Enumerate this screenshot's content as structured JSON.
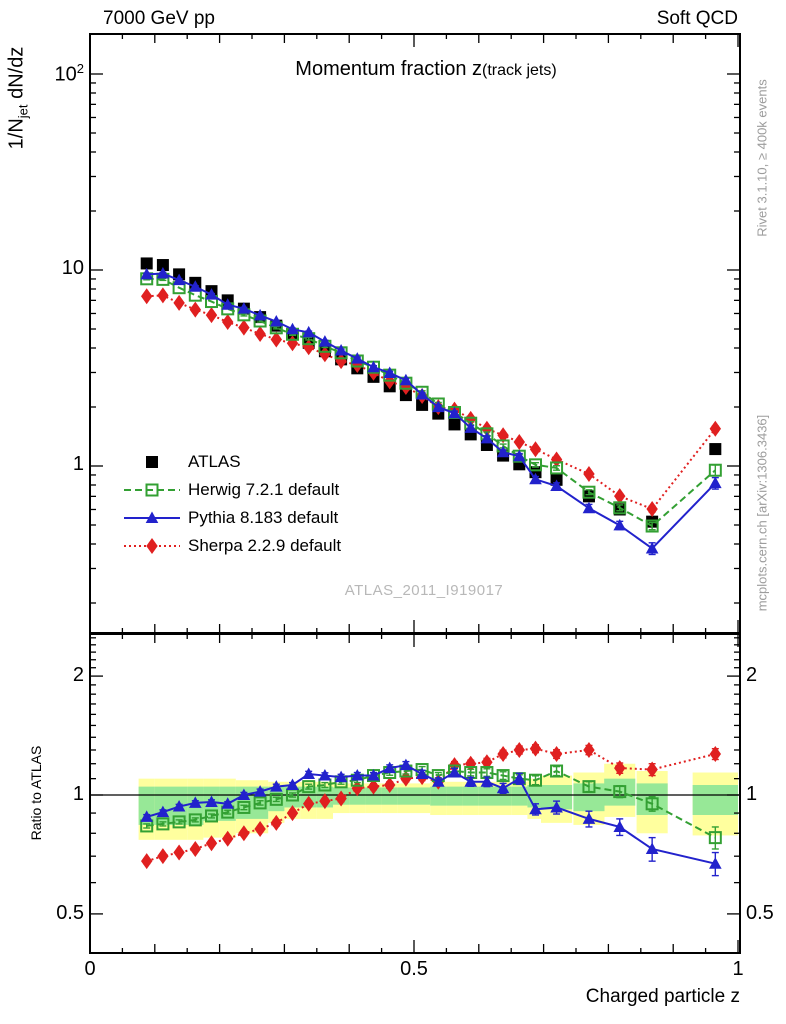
{
  "header": {
    "left": "7000 GeV pp",
    "right": "Soft QCD"
  },
  "title": {
    "main": "Momentum fraction z",
    "paren": "(track jets)"
  },
  "ylabel_main": {
    "pre": "1/N",
    "sub": "jet",
    "post": " dN/dz"
  },
  "ylabel_ratio": "Ratio to ATLAS",
  "xlabel": "Charged particle z",
  "watermark": "ATLAS_2011_I919017",
  "side_notes": {
    "top": "Rivet 3.1.10, ≥ 400k events",
    "bottom": "mcplots.cern.ch [arXiv:1306.3436]"
  },
  "colors": {
    "atlas": "#000000",
    "herwig": "#33A033",
    "pythia": "#2222CC",
    "sherpa": "#E02020",
    "band_yellow": "#FFFF9E",
    "band_green": "#97E897",
    "watermark": "#B8B8B8",
    "side_note": "#9C9C9C",
    "frame": "#000000"
  },
  "chart_data": {
    "type": "line",
    "title": "Momentum fraction z (track jets)",
    "xlabel": "Charged particle z",
    "ylabel": "1/N_jet dN/dz",
    "ratio_label": "Ratio to ATLAS",
    "legend_position": "middle-left",
    "x_axis": {
      "lim": [
        0,
        1.003
      ],
      "ticks": [
        {
          "text": "0",
          "v": 0
        },
        {
          "text": "0.5",
          "v": 0.5
        },
        {
          "text": "1",
          "v": 1
        }
      ],
      "minor_step": 0.05,
      "medium_step": 0.1
    },
    "main_axis": {
      "scale": "log",
      "ylim": [
        0.14,
        160
      ],
      "yticks": [
        {
          "text": "10",
          "sup": "2",
          "v": 100
        },
        {
          "text": "10",
          "v": 10
        },
        {
          "text": "1",
          "v": 1
        }
      ]
    },
    "ratio_axis": {
      "scale": "log",
      "ylim": [
        0.398,
        2.56
      ],
      "yticks": [
        {
          "text": "2",
          "v": 2
        },
        {
          "text": "1",
          "v": 1
        },
        {
          "text": "0.5",
          "v": 0.5
        }
      ]
    },
    "x": [
      0.0875,
      0.1125,
      0.1375,
      0.1625,
      0.1875,
      0.2125,
      0.2375,
      0.2625,
      0.2875,
      0.3125,
      0.3375,
      0.3625,
      0.3875,
      0.4125,
      0.4375,
      0.4625,
      0.4875,
      0.5125,
      0.5375,
      0.5625,
      0.5875,
      0.6125,
      0.6375,
      0.6625,
      0.6875,
      0.72,
      0.77,
      0.8175,
      0.8675,
      0.965
    ],
    "bin_halfwidth": [
      0.0125,
      0.0125,
      0.0125,
      0.0125,
      0.0125,
      0.0125,
      0.0125,
      0.0125,
      0.0125,
      0.0125,
      0.0125,
      0.0125,
      0.0125,
      0.0125,
      0.0125,
      0.0125,
      0.0125,
      0.0125,
      0.0125,
      0.0125,
      0.0125,
      0.0125,
      0.0125,
      0.0125,
      0.0125,
      0.024,
      0.024,
      0.024,
      0.024,
      0.035
    ],
    "series": [
      {
        "name": "ATLAS",
        "marker": "square",
        "fill": "filled",
        "color": "#000000",
        "line": "none",
        "values": [
          10.8,
          10.6,
          9.5,
          8.6,
          7.8,
          7.0,
          6.35,
          5.75,
          5.2,
          4.7,
          4.25,
          3.85,
          3.5,
          3.15,
          2.85,
          2.55,
          2.3,
          2.05,
          1.85,
          1.63,
          1.45,
          1.28,
          1.13,
          1.02,
          0.93,
          0.85,
          0.7,
          0.6,
          0.52,
          1.22
        ],
        "err_rel": [
          0.01,
          0.01,
          0.01,
          0.01,
          0.01,
          0.01,
          0.01,
          0.01,
          0.01,
          0.01,
          0.01,
          0.01,
          0.012,
          0.012,
          0.012,
          0.015,
          0.015,
          0.015,
          0.018,
          0.018,
          0.02,
          0.02,
          0.022,
          0.025,
          0.025,
          0.03,
          0.03,
          0.035,
          0.04,
          0.04
        ]
      },
      {
        "name": "Sherpa 2.2.9 default",
        "marker": "diamond",
        "fill": "filled",
        "color": "#E02020",
        "line": "dotted",
        "ratio": [
          0.68,
          0.7,
          0.715,
          0.73,
          0.755,
          0.775,
          0.8,
          0.82,
          0.85,
          0.9,
          0.95,
          0.965,
          0.98,
          1.04,
          1.05,
          1.06,
          1.1,
          1.11,
          1.08,
          1.19,
          1.2,
          1.21,
          1.27,
          1.3,
          1.31,
          1.27,
          1.3,
          1.17,
          1.16,
          1.27
        ],
        "err": [
          0.01,
          0.01,
          0.01,
          0.01,
          0.01,
          0.012,
          0.012,
          0.012,
          0.015,
          0.015,
          0.015,
          0.015,
          0.018,
          0.018,
          0.018,
          0.02,
          0.02,
          0.022,
          0.022,
          0.025,
          0.025,
          0.028,
          0.028,
          0.03,
          0.03,
          0.032,
          0.035,
          0.035,
          0.04,
          0.04
        ]
      },
      {
        "name": "Herwig 7.2.1 default",
        "marker": "square",
        "fill": "open",
        "color": "#33A033",
        "line": "dashed",
        "ratio": [
          0.835,
          0.845,
          0.855,
          0.865,
          0.885,
          0.905,
          0.93,
          0.955,
          0.975,
          1.0,
          1.05,
          1.06,
          1.08,
          1.09,
          1.12,
          1.14,
          1.15,
          1.16,
          1.12,
          1.15,
          1.14,
          1.14,
          1.12,
          1.1,
          1.09,
          1.15,
          1.05,
          1.02,
          0.95,
          0.78
        ],
        "err": [
          0.01,
          0.01,
          0.01,
          0.01,
          0.01,
          0.01,
          0.012,
          0.012,
          0.012,
          0.012,
          0.015,
          0.015,
          0.015,
          0.015,
          0.018,
          0.018,
          0.02,
          0.02,
          0.02,
          0.022,
          0.022,
          0.025,
          0.025,
          0.025,
          0.028,
          0.03,
          0.03,
          0.035,
          0.04,
          0.05
        ]
      },
      {
        "name": "Pythia 8.183 default",
        "marker": "triangle",
        "fill": "filled",
        "color": "#2222CC",
        "line": "solid",
        "ratio": [
          0.88,
          0.905,
          0.935,
          0.955,
          0.96,
          0.95,
          1.0,
          1.02,
          1.05,
          1.06,
          1.13,
          1.12,
          1.11,
          1.12,
          1.12,
          1.17,
          1.19,
          1.13,
          1.08,
          1.14,
          1.08,
          1.08,
          1.04,
          1.1,
          0.92,
          0.93,
          0.87,
          0.83,
          0.73,
          0.67
        ],
        "err": [
          0.012,
          0.012,
          0.012,
          0.012,
          0.012,
          0.012,
          0.015,
          0.015,
          0.015,
          0.015,
          0.018,
          0.018,
          0.018,
          0.02,
          0.02,
          0.022,
          0.025,
          0.025,
          0.025,
          0.028,
          0.028,
          0.03,
          0.03,
          0.035,
          0.03,
          0.035,
          0.04,
          0.04,
          0.05,
          0.045
        ]
      }
    ],
    "legend_order": [
      "ATLAS",
      "Herwig 7.2.1 default",
      "Pythia 8.183 default",
      "Sherpa 2.2.9 default"
    ],
    "uncertainty_bands": {
      "yellow": [
        [
          0.77,
          1.1
        ],
        [
          0.77,
          1.1
        ],
        [
          0.77,
          1.1
        ],
        [
          0.77,
          1.1
        ],
        [
          0.78,
          1.1
        ],
        [
          0.78,
          1.1
        ],
        [
          0.8,
          1.09
        ],
        [
          0.8,
          1.09
        ],
        [
          0.85,
          1.08
        ],
        [
          0.87,
          1.08
        ],
        [
          0.87,
          1.08
        ],
        [
          0.87,
          1.08
        ],
        [
          0.9,
          1.07
        ],
        [
          0.9,
          1.07
        ],
        [
          0.9,
          1.07
        ],
        [
          0.9,
          1.07
        ],
        [
          0.9,
          1.07
        ],
        [
          0.9,
          1.07
        ],
        [
          0.89,
          1.08
        ],
        [
          0.89,
          1.08
        ],
        [
          0.89,
          1.08
        ],
        [
          0.89,
          1.08
        ],
        [
          0.89,
          1.08
        ],
        [
          0.89,
          1.08
        ],
        [
          0.87,
          1.1
        ],
        [
          0.85,
          1.12
        ],
        [
          0.84,
          1.14
        ],
        [
          0.88,
          1.2
        ],
        [
          0.8,
          1.15
        ],
        [
          0.79,
          1.14
        ]
      ],
      "green": [
        [
          0.84,
          1.05
        ],
        [
          0.84,
          1.05
        ],
        [
          0.84,
          1.05
        ],
        [
          0.84,
          1.05
        ],
        [
          0.86,
          1.05
        ],
        [
          0.86,
          1.05
        ],
        [
          0.87,
          1.05
        ],
        [
          0.87,
          1.05
        ],
        [
          0.91,
          1.05
        ],
        [
          0.93,
          1.05
        ],
        [
          0.93,
          1.05
        ],
        [
          0.93,
          1.05
        ],
        [
          0.945,
          1.045
        ],
        [
          0.945,
          1.045
        ],
        [
          0.945,
          1.045
        ],
        [
          0.945,
          1.045
        ],
        [
          0.945,
          1.045
        ],
        [
          0.945,
          1.045
        ],
        [
          0.94,
          1.05
        ],
        [
          0.94,
          1.05
        ],
        [
          0.94,
          1.05
        ],
        [
          0.94,
          1.05
        ],
        [
          0.94,
          1.05
        ],
        [
          0.94,
          1.05
        ],
        [
          0.93,
          1.06
        ],
        [
          0.92,
          1.06
        ],
        [
          0.91,
          1.07
        ],
        [
          0.94,
          1.1
        ],
        [
          0.89,
          1.07
        ],
        [
          0.89,
          1.06
        ]
      ]
    }
  }
}
